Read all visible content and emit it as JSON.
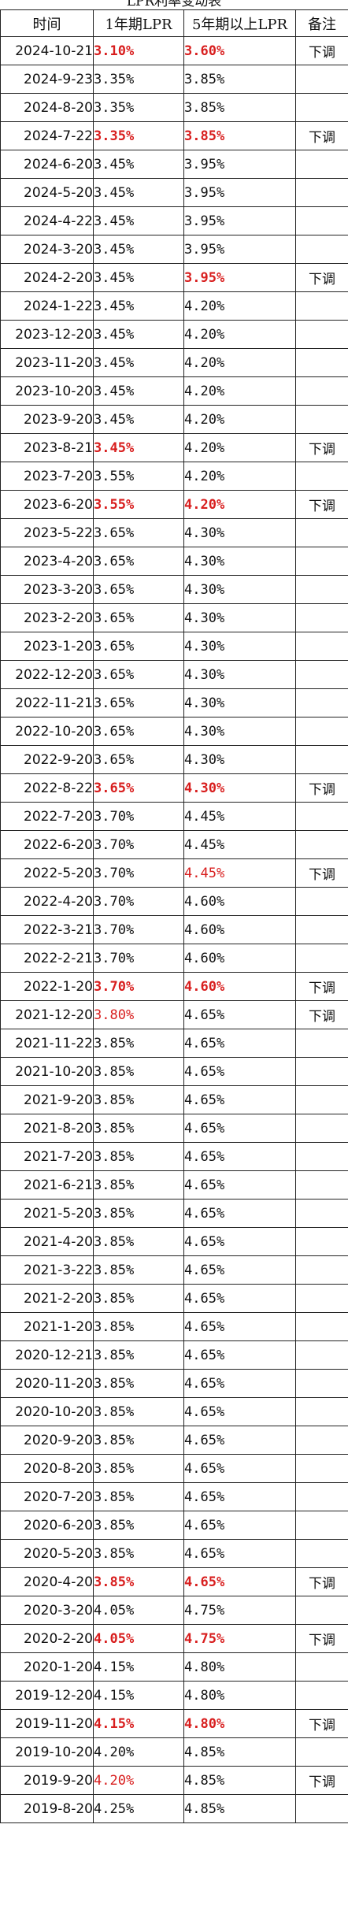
{
  "title": "LPR利率变动表",
  "headers": {
    "date": "时间",
    "one_year": "1年期LPR",
    "five_year": "5年期以上LPR",
    "note": "备注"
  },
  "colors": {
    "highlight": "#d81e1e",
    "text": "#111111",
    "border": "#222222"
  },
  "rows": [
    {
      "date": "2024-10-21",
      "one": "3.10%",
      "five": "3.60%",
      "note": "下调",
      "one_style": "hl",
      "five_style": "hl"
    },
    {
      "date": "2024-9-23",
      "one": "3.35%",
      "five": "3.85%",
      "note": "",
      "one_style": "",
      "five_style": ""
    },
    {
      "date": "2024-8-20",
      "one": "3.35%",
      "five": "3.85%",
      "note": "",
      "one_style": "",
      "five_style": ""
    },
    {
      "date": "2024-7-22",
      "one": "3.35%",
      "five": "3.85%",
      "note": "下调",
      "one_style": "hl",
      "five_style": "hl"
    },
    {
      "date": "2024-6-20",
      "one": "3.45%",
      "five": "3.95%",
      "note": "",
      "one_style": "",
      "five_style": ""
    },
    {
      "date": "2024-5-20",
      "one": "3.45%",
      "five": "3.95%",
      "note": "",
      "one_style": "",
      "five_style": ""
    },
    {
      "date": "2024-4-22",
      "one": "3.45%",
      "five": "3.95%",
      "note": "",
      "one_style": "",
      "five_style": ""
    },
    {
      "date": "2024-3-20",
      "one": "3.45%",
      "five": "3.95%",
      "note": "",
      "one_style": "",
      "five_style": ""
    },
    {
      "date": "2024-2-20",
      "one": "3.45%",
      "five": "3.95%",
      "note": "下调",
      "one_style": "",
      "five_style": "hl"
    },
    {
      "date": "2024-1-22",
      "one": "3.45%",
      "five": "4.20%",
      "note": "",
      "one_style": "",
      "five_style": ""
    },
    {
      "date": "2023-12-20",
      "one": "3.45%",
      "five": "4.20%",
      "note": "",
      "one_style": "",
      "five_style": ""
    },
    {
      "date": "2023-11-20",
      "one": "3.45%",
      "five": "4.20%",
      "note": "",
      "one_style": "",
      "five_style": ""
    },
    {
      "date": "2023-10-20",
      "one": "3.45%",
      "five": "4.20%",
      "note": "",
      "one_style": "",
      "five_style": ""
    },
    {
      "date": "2023-9-20",
      "one": "3.45%",
      "five": "4.20%",
      "note": "",
      "one_style": "",
      "five_style": ""
    },
    {
      "date": "2023-8-21",
      "one": "3.45%",
      "five": "4.20%",
      "note": "下调",
      "one_style": "hl",
      "five_style": ""
    },
    {
      "date": "2023-7-20",
      "one": "3.55%",
      "five": "4.20%",
      "note": "",
      "one_style": "",
      "five_style": ""
    },
    {
      "date": "2023-6-20",
      "one": "3.55%",
      "five": "4.20%",
      "note": "下调",
      "one_style": "hl",
      "five_style": "hl"
    },
    {
      "date": "2023-5-22",
      "one": "3.65%",
      "five": "4.30%",
      "note": "",
      "one_style": "",
      "five_style": ""
    },
    {
      "date": "2023-4-20",
      "one": "3.65%",
      "five": "4.30%",
      "note": "",
      "one_style": "",
      "five_style": ""
    },
    {
      "date": "2023-3-20",
      "one": "3.65%",
      "five": "4.30%",
      "note": "",
      "one_style": "",
      "five_style": ""
    },
    {
      "date": "2023-2-20",
      "one": "3.65%",
      "five": "4.30%",
      "note": "",
      "one_style": "",
      "five_style": ""
    },
    {
      "date": "2023-1-20",
      "one": "3.65%",
      "five": "4.30%",
      "note": "",
      "one_style": "",
      "five_style": ""
    },
    {
      "date": "2022-12-20",
      "one": "3.65%",
      "five": "4.30%",
      "note": "",
      "one_style": "",
      "five_style": ""
    },
    {
      "date": "2022-11-21",
      "one": "3.65%",
      "five": "4.30%",
      "note": "",
      "one_style": "",
      "five_style": ""
    },
    {
      "date": "2022-10-20",
      "one": "3.65%",
      "five": "4.30%",
      "note": "",
      "one_style": "",
      "five_style": ""
    },
    {
      "date": "2022-9-20",
      "one": "3.65%",
      "five": "4.30%",
      "note": "",
      "one_style": "",
      "five_style": ""
    },
    {
      "date": "2022-8-22",
      "one": "3.65%",
      "five": "4.30%",
      "note": "下调",
      "one_style": "hl",
      "five_style": "hl"
    },
    {
      "date": "2022-7-20",
      "one": "3.70%",
      "five": "4.45%",
      "note": "",
      "one_style": "",
      "five_style": ""
    },
    {
      "date": "2022-6-20",
      "one": "3.70%",
      "five": "4.45%",
      "note": "",
      "one_style": "",
      "five_style": ""
    },
    {
      "date": "2022-5-20",
      "one": "3.70%",
      "five": "4.45%",
      "note": "下调",
      "one_style": "",
      "five_style": "soft"
    },
    {
      "date": "2022-4-20",
      "one": "3.70%",
      "five": "4.60%",
      "note": "",
      "one_style": "",
      "five_style": ""
    },
    {
      "date": "2022-3-21",
      "one": "3.70%",
      "five": "4.60%",
      "note": "",
      "one_style": "",
      "five_style": ""
    },
    {
      "date": "2022-2-21",
      "one": "3.70%",
      "five": "4.60%",
      "note": "",
      "one_style": "",
      "five_style": ""
    },
    {
      "date": "2022-1-20",
      "one": "3.70%",
      "five": "4.60%",
      "note": "下调",
      "one_style": "hl",
      "five_style": "hl"
    },
    {
      "date": "2021-12-20",
      "one": "3.80%",
      "five": "4.65%",
      "note": "下调",
      "one_style": "soft",
      "five_style": ""
    },
    {
      "date": "2021-11-22",
      "one": "3.85%",
      "five": "4.65%",
      "note": "",
      "one_style": "",
      "five_style": ""
    },
    {
      "date": "2021-10-20",
      "one": "3.85%",
      "five": "4.65%",
      "note": "",
      "one_style": "",
      "five_style": ""
    },
    {
      "date": "2021-9-20",
      "one": "3.85%",
      "five": "4.65%",
      "note": "",
      "one_style": "",
      "five_style": ""
    },
    {
      "date": "2021-8-20",
      "one": "3.85%",
      "five": "4.65%",
      "note": "",
      "one_style": "",
      "five_style": ""
    },
    {
      "date": "2021-7-20",
      "one": "3.85%",
      "five": "4.65%",
      "note": "",
      "one_style": "",
      "five_style": ""
    },
    {
      "date": "2021-6-21",
      "one": "3.85%",
      "five": "4.65%",
      "note": "",
      "one_style": "",
      "five_style": ""
    },
    {
      "date": "2021-5-20",
      "one": "3.85%",
      "five": "4.65%",
      "note": "",
      "one_style": "",
      "five_style": ""
    },
    {
      "date": "2021-4-20",
      "one": "3.85%",
      "five": "4.65%",
      "note": "",
      "one_style": "",
      "five_style": ""
    },
    {
      "date": "2021-3-22",
      "one": "3.85%",
      "five": "4.65%",
      "note": "",
      "one_style": "",
      "five_style": ""
    },
    {
      "date": "2021-2-20",
      "one": "3.85%",
      "five": "4.65%",
      "note": "",
      "one_style": "",
      "five_style": ""
    },
    {
      "date": "2021-1-20",
      "one": "3.85%",
      "five": "4.65%",
      "note": "",
      "one_style": "",
      "five_style": ""
    },
    {
      "date": "2020-12-21",
      "one": "3.85%",
      "five": "4.65%",
      "note": "",
      "one_style": "",
      "five_style": ""
    },
    {
      "date": "2020-11-20",
      "one": "3.85%",
      "five": "4.65%",
      "note": "",
      "one_style": "",
      "five_style": ""
    },
    {
      "date": "2020-10-20",
      "one": "3.85%",
      "five": "4.65%",
      "note": "",
      "one_style": "",
      "five_style": ""
    },
    {
      "date": "2020-9-20",
      "one": "3.85%",
      "five": "4.65%",
      "note": "",
      "one_style": "",
      "five_style": ""
    },
    {
      "date": "2020-8-20",
      "one": "3.85%",
      "five": "4.65%",
      "note": "",
      "one_style": "",
      "five_style": ""
    },
    {
      "date": "2020-7-20",
      "one": "3.85%",
      "five": "4.65%",
      "note": "",
      "one_style": "",
      "five_style": ""
    },
    {
      "date": "2020-6-20",
      "one": "3.85%",
      "five": "4.65%",
      "note": "",
      "one_style": "",
      "five_style": ""
    },
    {
      "date": "2020-5-20",
      "one": "3.85%",
      "five": "4.65%",
      "note": "",
      "one_style": "",
      "five_style": ""
    },
    {
      "date": "2020-4-20",
      "one": "3.85%",
      "five": "4.65%",
      "note": "下调",
      "one_style": "hl",
      "five_style": "hl"
    },
    {
      "date": "2020-3-20",
      "one": "4.05%",
      "five": "4.75%",
      "note": "",
      "one_style": "",
      "five_style": ""
    },
    {
      "date": "2020-2-20",
      "one": "4.05%",
      "five": "4.75%",
      "note": "下调",
      "one_style": "hl",
      "five_style": "hl"
    },
    {
      "date": "2020-1-20",
      "one": "4.15%",
      "five": "4.80%",
      "note": "",
      "one_style": "",
      "five_style": ""
    },
    {
      "date": "2019-12-20",
      "one": "4.15%",
      "five": "4.80%",
      "note": "",
      "one_style": "",
      "five_style": ""
    },
    {
      "date": "2019-11-20",
      "one": "4.15%",
      "five": "4.80%",
      "note": "下调",
      "one_style": "hl",
      "five_style": "hl"
    },
    {
      "date": "2019-10-20",
      "one": "4.20%",
      "five": "4.85%",
      "note": "",
      "one_style": "",
      "five_style": ""
    },
    {
      "date": "2019-9-20",
      "one": "4.20%",
      "five": "4.85%",
      "note": "下调",
      "one_style": "soft",
      "five_style": ""
    },
    {
      "date": "2019-8-20",
      "one": "4.25%",
      "five": "4.85%",
      "note": "",
      "one_style": "",
      "five_style": ""
    }
  ]
}
